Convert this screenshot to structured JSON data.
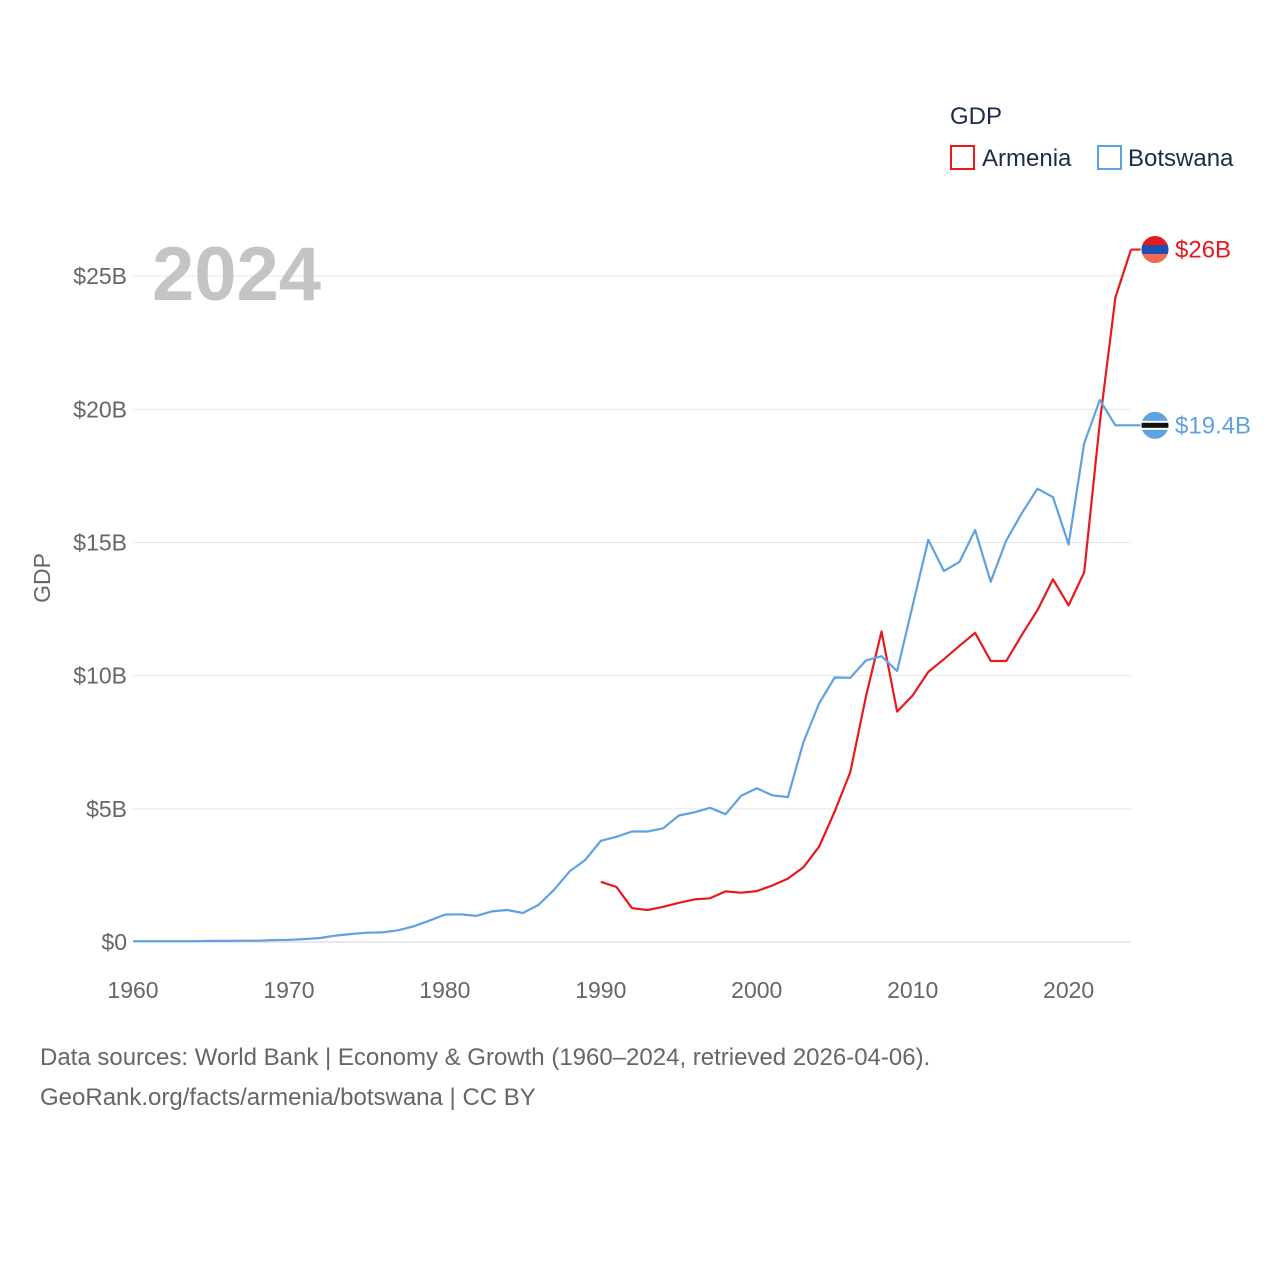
{
  "chart_data": {
    "type": "line",
    "year_label": "2024",
    "ylabel": "GDP",
    "xlabel": "",
    "xlim": [
      1960,
      2024
    ],
    "ylim": [
      0,
      27
    ],
    "x_ticks": [
      1960,
      1970,
      1980,
      1990,
      2000,
      2010,
      2020
    ],
    "x_tick_labels": [
      "1960",
      "1970",
      "1980",
      "1990",
      "2000",
      "2010",
      "2020"
    ],
    "y_ticks": [
      0,
      5,
      10,
      15,
      20,
      25
    ],
    "y_tick_labels": [
      "$0",
      "$5B",
      "$10B",
      "$15B",
      "$20B",
      "$25B"
    ],
    "legend": {
      "title": "GDP",
      "position": "top-right"
    },
    "series": [
      {
        "name": "Armenia",
        "color": "#e8191b",
        "end_label": "$26B",
        "flag": "armenia-flag-icon",
        "points": [
          [
            1990,
            2.26
          ],
          [
            1991,
            2.07
          ],
          [
            1992,
            1.27
          ],
          [
            1993,
            1.2
          ],
          [
            1994,
            1.32
          ],
          [
            1995,
            1.47
          ],
          [
            1996,
            1.6
          ],
          [
            1997,
            1.64
          ],
          [
            1998,
            1.9
          ],
          [
            1999,
            1.85
          ],
          [
            2000,
            1.91
          ],
          [
            2001,
            2.12
          ],
          [
            2002,
            2.38
          ],
          [
            2003,
            2.81
          ],
          [
            2004,
            3.58
          ],
          [
            2005,
            4.9
          ],
          [
            2006,
            6.38
          ],
          [
            2007,
            9.21
          ],
          [
            2008,
            11.66
          ],
          [
            2009,
            8.65
          ],
          [
            2010,
            9.26
          ],
          [
            2011,
            10.14
          ],
          [
            2012,
            10.62
          ],
          [
            2013,
            11.12
          ],
          [
            2014,
            11.61
          ],
          [
            2015,
            10.55
          ],
          [
            2016,
            10.55
          ],
          [
            2017,
            11.53
          ],
          [
            2018,
            12.46
          ],
          [
            2019,
            13.62
          ],
          [
            2020,
            12.64
          ],
          [
            2021,
            13.88
          ],
          [
            2022,
            19.5
          ],
          [
            2023,
            24.2
          ],
          [
            2024,
            26.0
          ]
        ]
      },
      {
        "name": "Botswana",
        "color": "#5ea2e2",
        "end_label": "$19.4B",
        "flag": "botswana-flag-icon",
        "points": [
          [
            1960,
            0.03
          ],
          [
            1961,
            0.03
          ],
          [
            1962,
            0.03
          ],
          [
            1963,
            0.03
          ],
          [
            1964,
            0.03
          ],
          [
            1965,
            0.04
          ],
          [
            1966,
            0.04
          ],
          [
            1967,
            0.05
          ],
          [
            1968,
            0.05
          ],
          [
            1969,
            0.07
          ],
          [
            1970,
            0.08
          ],
          [
            1971,
            0.11
          ],
          [
            1972,
            0.15
          ],
          [
            1973,
            0.24
          ],
          [
            1974,
            0.3
          ],
          [
            1975,
            0.35
          ],
          [
            1976,
            0.36
          ],
          [
            1977,
            0.44
          ],
          [
            1978,
            0.59
          ],
          [
            1979,
            0.8
          ],
          [
            1980,
            1.03
          ],
          [
            1981,
            1.04
          ],
          [
            1982,
            0.98
          ],
          [
            1983,
            1.15
          ],
          [
            1984,
            1.2
          ],
          [
            1985,
            1.09
          ],
          [
            1986,
            1.39
          ],
          [
            1987,
            1.96
          ],
          [
            1988,
            2.65
          ],
          [
            1989,
            3.08
          ],
          [
            1990,
            3.8
          ],
          [
            1991,
            3.95
          ],
          [
            1992,
            4.15
          ],
          [
            1993,
            4.15
          ],
          [
            1994,
            4.27
          ],
          [
            1995,
            4.75
          ],
          [
            1996,
            4.87
          ],
          [
            1997,
            5.04
          ],
          [
            1998,
            4.8
          ],
          [
            1999,
            5.49
          ],
          [
            2000,
            5.77
          ],
          [
            2001,
            5.51
          ],
          [
            2002,
            5.44
          ],
          [
            2003,
            7.51
          ],
          [
            2004,
            8.96
          ],
          [
            2005,
            9.93
          ],
          [
            2006,
            9.92
          ],
          [
            2007,
            10.57
          ],
          [
            2008,
            10.73
          ],
          [
            2009,
            10.17
          ],
          [
            2010,
            12.64
          ],
          [
            2011,
            15.1
          ],
          [
            2012,
            13.93
          ],
          [
            2013,
            14.27
          ],
          [
            2014,
            15.47
          ],
          [
            2015,
            13.53
          ],
          [
            2016,
            15.08
          ],
          [
            2017,
            16.1
          ],
          [
            2018,
            17.02
          ],
          [
            2019,
            16.7
          ],
          [
            2020,
            14.93
          ],
          [
            2021,
            18.73
          ],
          [
            2022,
            20.35
          ],
          [
            2023,
            19.4
          ],
          [
            2024,
            19.4
          ]
        ]
      }
    ]
  },
  "footer": {
    "line1": "Data sources: World Bank | Economy & Growth (1960–2024, retrieved 2026-04-06).",
    "line2": "GeoRank.org/facts/armenia/botswana | CC BY"
  }
}
